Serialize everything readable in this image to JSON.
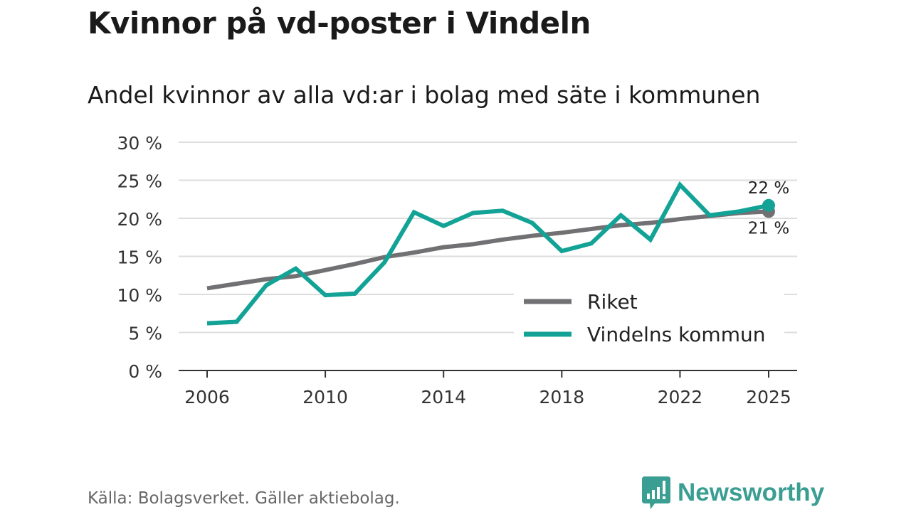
{
  "title": "Kvinnor på vd-poster i Vindeln",
  "subtitle": "Andel kvinnor av alla vd:ar i bolag med säte i kommunen",
  "source": "Källa: Bolagsverket. Gäller aktiebolag.",
  "logo": "Newsworthy",
  "colors": {
    "riket": "#717073",
    "vindeln": "#13a396",
    "grid": "#dddddd",
    "axis": "#333333",
    "logo": "#3a9e92"
  },
  "chart_data": {
    "type": "line",
    "title": "Kvinnor på vd-poster i Vindeln",
    "xlabel": "",
    "ylabel": "",
    "ylim": [
      0,
      30
    ],
    "yticks": [
      0,
      5,
      10,
      15,
      20,
      25,
      30
    ],
    "ytick_labels": [
      "0 %",
      "5 %",
      "10 %",
      "15 %",
      "20 %",
      "25 %",
      "30 %"
    ],
    "xticks": [
      2006,
      2010,
      2014,
      2018,
      2022,
      2025
    ],
    "xtick_labels": [
      "2006",
      "2010",
      "2014",
      "2018",
      "2022",
      "2025"
    ],
    "x": [
      2006,
      2007,
      2008,
      2009,
      2010,
      2011,
      2012,
      2013,
      2014,
      2015,
      2016,
      2017,
      2018,
      2019,
      2020,
      2021,
      2022,
      2023,
      2024,
      2025
    ],
    "grid": true,
    "legend_position": "bottom-right",
    "series": [
      {
        "name": "Riket",
        "key": "riket",
        "values": [
          10.8,
          11.4,
          12.0,
          12.4,
          13.2,
          14.0,
          14.9,
          15.5,
          16.2,
          16.6,
          17.2,
          17.7,
          18.1,
          18.6,
          19.1,
          19.4,
          19.9,
          20.3,
          20.7,
          20.9
        ],
        "end_label": "21 %"
      },
      {
        "name": "Vindelns kommun",
        "key": "vindeln",
        "values": [
          6.2,
          6.4,
          11.2,
          13.4,
          9.9,
          10.1,
          14.2,
          20.8,
          19.0,
          20.7,
          21.0,
          19.4,
          15.7,
          16.7,
          20.4,
          17.2,
          24.4,
          20.4,
          20.9,
          21.7
        ],
        "end_label": "22 %"
      }
    ]
  }
}
